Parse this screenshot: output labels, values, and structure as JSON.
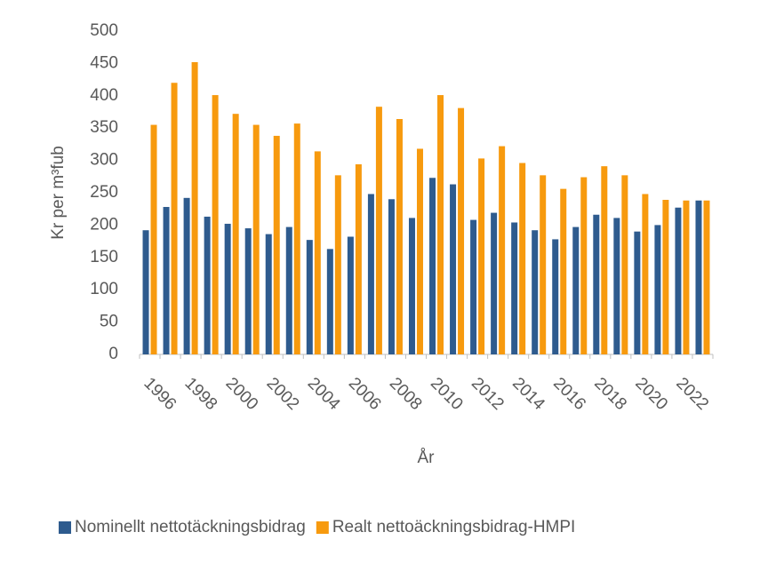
{
  "chart_data": {
    "type": "bar",
    "y_label": "Kr per m³fub",
    "x_label": "År",
    "categories": [
      "1996",
      null,
      "1998",
      null,
      "2000",
      null,
      "2002",
      null,
      "2004",
      null,
      "2006",
      null,
      "2008",
      null,
      "2010",
      null,
      "2012",
      null,
      "2014",
      null,
      "2016",
      null,
      "2018",
      null,
      "2020",
      null,
      "2022",
      null
    ],
    "series": [
      {
        "name": "Nominellt nettotäckningsbidrag",
        "color": "#2e5b8e",
        "values": [
          192,
          228,
          242,
          213,
          202,
          195,
          186,
          197,
          177,
          163,
          182,
          248,
          240,
          211,
          273,
          263,
          208,
          219,
          204,
          192,
          178,
          197,
          216,
          211,
          190,
          200,
          227,
          238
        ]
      },
      {
        "name": "Realt nettoäckningsbidrag-HMPI",
        "color": "#f79a0e",
        "values": [
          355,
          420,
          452,
          401,
          372,
          355,
          338,
          357,
          314,
          277,
          294,
          383,
          364,
          318,
          401,
          381,
          303,
          322,
          296,
          277,
          256,
          274,
          291,
          277,
          248,
          239,
          238,
          238
        ]
      }
    ],
    "ylim": [
      0,
      500
    ],
    "yticks": [
      0,
      50,
      100,
      150,
      200,
      250,
      300,
      350,
      400,
      450,
      500
    ],
    "grid": false,
    "legend": "bottom"
  }
}
